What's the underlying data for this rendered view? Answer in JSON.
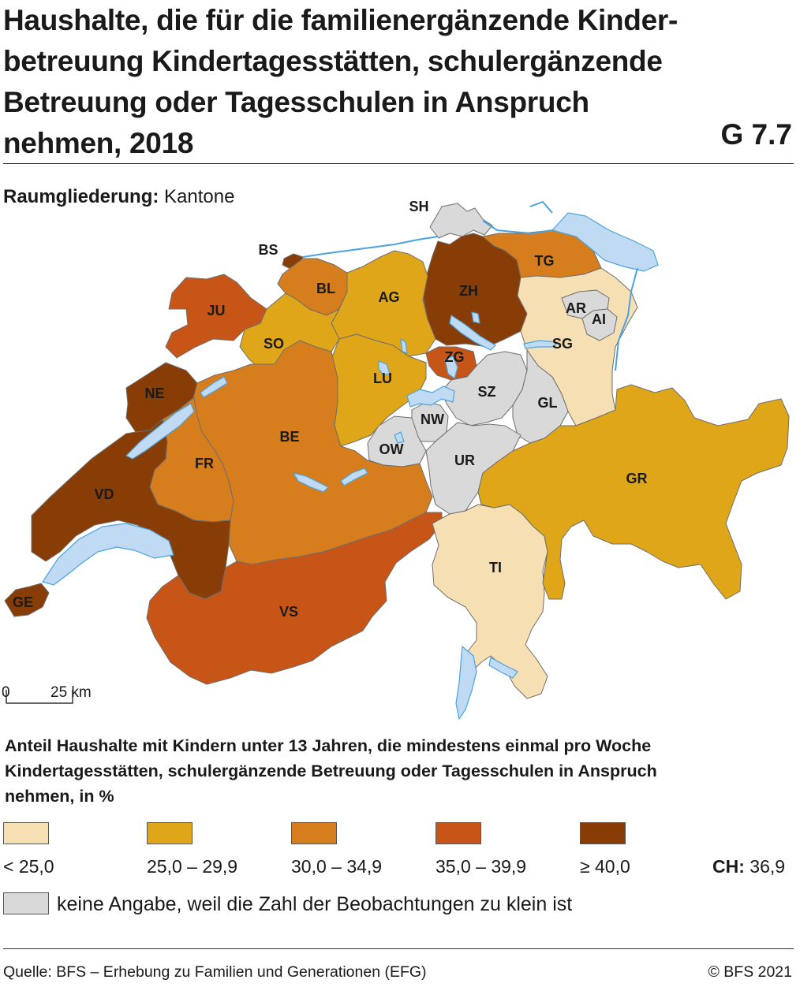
{
  "title_lines": [
    "Haushalte, die für die familienergänzende Kinder-",
    "betreuung Kindertagesstätten, schulergänzende",
    "Betreuung oder Tagesschulen in Anspruch",
    "nehmen, 2018"
  ],
  "figure_number": "G 7.7",
  "region_label": "Raumgliederung:",
  "region_value": "Kantone",
  "scale": {
    "zero": "0",
    "distance": "25 km"
  },
  "colors": {
    "lt25": "#f5dfb3",
    "c25_29": "#e0a61a",
    "c30_34": "#d67d1e",
    "c35_39": "#c85518",
    "ge40": "#873d05",
    "na": "#d9d9d9",
    "water": "#bfdaf2"
  },
  "cantons": [
    {
      "id": "SH",
      "class": "na"
    },
    {
      "id": "BS",
      "class": "ge40"
    },
    {
      "id": "BL",
      "class": "c30_34"
    },
    {
      "id": "AG",
      "class": "c25_29"
    },
    {
      "id": "ZH",
      "class": "ge40"
    },
    {
      "id": "TG",
      "class": "c30_34"
    },
    {
      "id": "JU",
      "class": "c35_39"
    },
    {
      "id": "SO",
      "class": "c25_29"
    },
    {
      "id": "AR",
      "class": "na"
    },
    {
      "id": "AI",
      "class": "na"
    },
    {
      "id": "SG",
      "class": "lt25"
    },
    {
      "id": "ZG",
      "class": "c35_39"
    },
    {
      "id": "LU",
      "class": "c25_29"
    },
    {
      "id": "NE",
      "class": "ge40"
    },
    {
      "id": "SZ",
      "class": "na"
    },
    {
      "id": "GL",
      "class": "na"
    },
    {
      "id": "NW",
      "class": "na"
    },
    {
      "id": "BE",
      "class": "c30_34"
    },
    {
      "id": "OW",
      "class": "na"
    },
    {
      "id": "UR",
      "class": "na"
    },
    {
      "id": "FR",
      "class": "c30_34"
    },
    {
      "id": "GR",
      "class": "c25_29"
    },
    {
      "id": "VD",
      "class": "ge40"
    },
    {
      "id": "TI",
      "class": "lt25"
    },
    {
      "id": "VS",
      "class": "c35_39"
    },
    {
      "id": "GE",
      "class": "ge40"
    }
  ],
  "legend": {
    "title_lines": [
      "Anteil Haushalte mit Kindern unter 13 Jahren, die mindestens einmal pro Woche",
      "Kindertagesstätten, schulergänzende Betreuung oder Tagesschulen in Anspruch",
      "nehmen, in %"
    ],
    "items": [
      {
        "key": "lt25",
        "label": "< 25,0"
      },
      {
        "key": "c25_29",
        "label": "25,0 – 29,9"
      },
      {
        "key": "c30_34",
        "label": "30,0 – 34,9"
      },
      {
        "key": "c35_39",
        "label": "35,0 – 39,9"
      },
      {
        "key": "ge40",
        "label": "≥ 40,0"
      }
    ],
    "ch_label": "CH:",
    "ch_value": "36,9",
    "na_label": "keine Angabe, weil die Zahl der Beobachtungen zu klein ist"
  },
  "source": "Quelle: BFS – Erhebung zu Familien und Generationen (EFG)",
  "copyright": "© BFS 2021"
}
